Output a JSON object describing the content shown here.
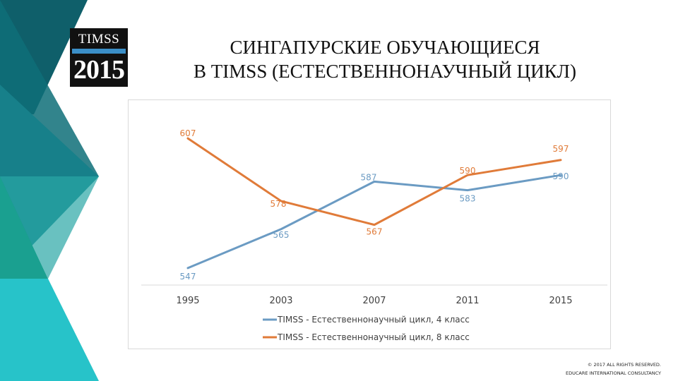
{
  "logo": {
    "line1": "TIMSS",
    "line2": "2015"
  },
  "title": {
    "line1": "СИНГАПУРСКИЕ ОБУЧАЮЩИЕСЯ",
    "line2": "В TIMSS (ЕСТЕСТВЕННОНАУЧНЫЙ ЦИКЛ)"
  },
  "footer": {
    "line1": "© 2017 ALL RIGHTS RESERVED.",
    "line2": "EDUCARE INTERNATIONAL CONSULTANCY"
  },
  "colors": {
    "series_4": "#6b9bc3",
    "series_8": "#e07b39",
    "bg_dark_teal": "#0f5f6a",
    "bg_teal": "#1a8e8a",
    "bg_cyan": "#27c3c9",
    "bg_green": "#17a08c"
  },
  "chart_data": {
    "type": "line",
    "categories": [
      "1995",
      "2003",
      "2007",
      "2011",
      "2015"
    ],
    "series": [
      {
        "name": "TIMSS - Естественнонаучный цикл, 4 класс",
        "values": [
          547,
          565,
          587,
          583,
          590
        ],
        "labels": [
          "547",
          "565",
          "587",
          "583",
          "590"
        ]
      },
      {
        "name": "TIMSS - Естественнонаучный цикл, 8 класс",
        "values": [
          607,
          578,
          567,
          590,
          597
        ],
        "labels": [
          "607",
          "578",
          "567",
          "590",
          "597"
        ]
      }
    ],
    "ylim": [
      545,
      609
    ],
    "grid": false,
    "legend": "bottom"
  }
}
